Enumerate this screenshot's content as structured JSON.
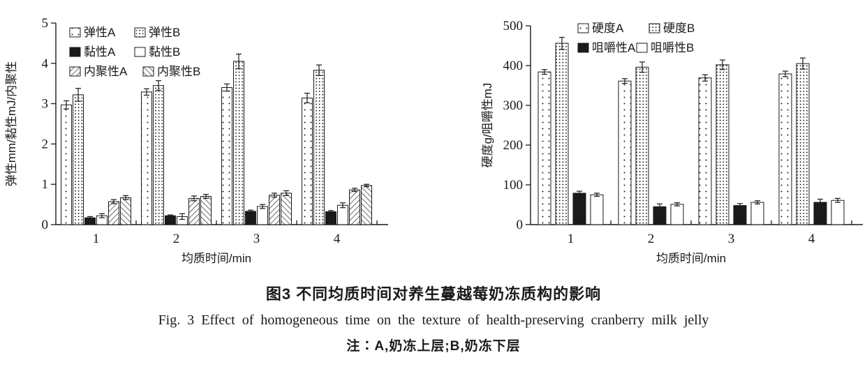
{
  "figure": {
    "caption_cn": "图3  不同均质时间对养生蔓越莓奶冻质构的影响",
    "caption_en": "Fig. 3  Effect of homogeneous time on the texture of health-preserving cranberry milk jelly",
    "note": "注∶A,奶冻上层;B,奶冻下层"
  },
  "colors": {
    "ink": "#1a1a1a",
    "background": "#ffffff"
  },
  "chart_data": [
    {
      "type": "bar",
      "title": "",
      "xlabel": "均质时间/min",
      "ylabel": "弹性mm/黏性mJ/内聚性",
      "ylim": [
        0,
        5
      ],
      "yticks": [
        0,
        1,
        2,
        3,
        4,
        5
      ],
      "categories": [
        "1",
        "2",
        "3",
        "4"
      ],
      "grid": false,
      "legend_position": "top-left-inside",
      "series": [
        {
          "name": "弹性A",
          "pattern": "dots-sparse",
          "values": [
            2.97,
            3.29,
            3.4,
            3.14
          ],
          "errors": [
            0.1,
            0.08,
            0.09,
            0.12
          ]
        },
        {
          "name": "弹性B",
          "pattern": "dots-dense",
          "values": [
            3.22,
            3.45,
            4.05,
            3.83
          ],
          "errors": [
            0.16,
            0.12,
            0.18,
            0.13
          ]
        },
        {
          "name": "黏性A",
          "pattern": "solid-black",
          "values": [
            0.17,
            0.22,
            0.33,
            0.32
          ],
          "errors": [
            0.03,
            0.02,
            0.03,
            0.03
          ]
        },
        {
          "name": "黏性B",
          "pattern": "open-white",
          "values": [
            0.22,
            0.2,
            0.45,
            0.48
          ],
          "errors": [
            0.05,
            0.07,
            0.05,
            0.06
          ]
        },
        {
          "name": "内聚性A",
          "pattern": "hatch-back",
          "values": [
            0.57,
            0.65,
            0.73,
            0.86
          ],
          "errors": [
            0.05,
            0.06,
            0.05,
            0.04
          ]
        },
        {
          "name": "内聚性B",
          "pattern": "hatch-fwd",
          "values": [
            0.67,
            0.7,
            0.78,
            0.97
          ],
          "errors": [
            0.05,
            0.05,
            0.06,
            0.03
          ]
        }
      ]
    },
    {
      "type": "bar",
      "title": "",
      "xlabel": "均质时间/min",
      "ylabel": "硬度g/咀嚼性mJ",
      "ylim": [
        0,
        500
      ],
      "yticks": [
        0,
        100,
        200,
        300,
        400,
        500
      ],
      "categories": [
        "1",
        "2",
        "3",
        "4"
      ],
      "grid": false,
      "legend_position": "top-center-inside",
      "series": [
        {
          "name": "硬度A",
          "pattern": "dots-sparse",
          "values": [
            384,
            361,
            369,
            379
          ],
          "errors": [
            6,
            6,
            8,
            7
          ]
        },
        {
          "name": "硬度B",
          "pattern": "dots-dense",
          "values": [
            456,
            396,
            402,
            405
          ],
          "errors": [
            15,
            13,
            12,
            14
          ]
        },
        {
          "name": "咀嚼性A",
          "pattern": "solid-black",
          "values": [
            79,
            45,
            48,
            56
          ],
          "errors": [
            5,
            7,
            5,
            8
          ]
        },
        {
          "name": "咀嚼性B",
          "pattern": "open-white",
          "values": [
            75,
            51,
            56,
            61
          ],
          "errors": [
            4,
            4,
            4,
            5
          ]
        }
      ]
    }
  ]
}
